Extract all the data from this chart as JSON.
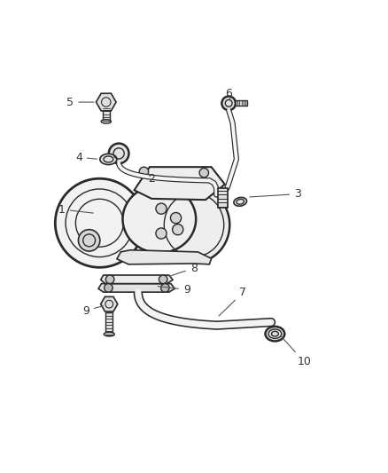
{
  "bg_color": "#ffffff",
  "line_color": "#2a2a2a",
  "line_width": 1.2,
  "label_color": "#333333",
  "label_fontsize": 9,
  "fig_width": 4.38,
  "fig_height": 5.33,
  "dpi": 100
}
